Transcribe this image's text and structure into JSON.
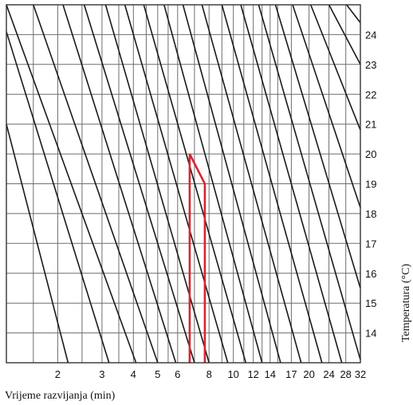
{
  "chart_data": {
    "type": "line",
    "title": "",
    "xlabel": "Vrijeme razvijanja (min)",
    "ylabel": "Temperatura (°C)",
    "x_scale": "log",
    "xlim": [
      1.25,
      32
    ],
    "ylim": [
      13,
      25
    ],
    "grid": true,
    "x_grid": [
      1.25,
      1.6,
      2,
      2.5,
      3,
      3.5,
      4,
      4.5,
      5,
      5.5,
      6,
      7,
      8,
      9,
      10,
      11,
      12,
      13,
      14,
      15,
      17,
      20,
      24,
      28,
      32
    ],
    "x_ticks": [
      {
        "value": 2,
        "label": "2"
      },
      {
        "value": 3,
        "label": "3"
      },
      {
        "value": 4,
        "label": "4"
      },
      {
        "value": 5,
        "label": "5"
      },
      {
        "value": 6,
        "label": "6"
      },
      {
        "value": 8,
        "label": "8"
      },
      {
        "value": 10,
        "label": "10"
      },
      {
        "value": 12,
        "label": "12"
      },
      {
        "value": 14,
        "label": "14"
      },
      {
        "value": 17,
        "label": "17"
      },
      {
        "value": 20,
        "label": "20"
      },
      {
        "value": 24,
        "label": "24"
      },
      {
        "value": 28,
        "label": "28"
      },
      {
        "value": 32,
        "label": "32"
      }
    ],
    "y_ticks": [
      {
        "value": 14,
        "label": "14"
      },
      {
        "value": 15,
        "label": "15"
      },
      {
        "value": 16,
        "label": "16"
      },
      {
        "value": 17,
        "label": "17"
      },
      {
        "value": 18,
        "label": "18"
      },
      {
        "value": 19,
        "label": "19"
      },
      {
        "value": 20,
        "label": "20"
      },
      {
        "value": 21,
        "label": "21"
      },
      {
        "value": 22,
        "label": "22"
      },
      {
        "value": 23,
        "label": "23"
      },
      {
        "value": 24,
        "label": "24"
      }
    ],
    "guide_lines": [
      {
        "points": [
          [
            1.25,
            24.1
          ],
          [
            3.2,
            13
          ]
        ]
      },
      {
        "points": [
          [
            1.25,
            21.0
          ],
          [
            2.2,
            13
          ]
        ]
      },
      {
        "points": [
          [
            1.25,
            25
          ],
          [
            4.1,
            13
          ]
        ]
      },
      {
        "points": [
          [
            1.6,
            25
          ],
          [
            5.0,
            13
          ]
        ]
      },
      {
        "points": [
          [
            2.1,
            25
          ],
          [
            5.9,
            13
          ]
        ]
      },
      {
        "points": [
          [
            2.55,
            25
          ],
          [
            7.0,
            13
          ]
        ]
      },
      {
        "points": [
          [
            3.1,
            25
          ],
          [
            8.0,
            13
          ]
        ]
      },
      {
        "points": [
          [
            3.7,
            25
          ],
          [
            9.5,
            13
          ]
        ]
      },
      {
        "points": [
          [
            4.4,
            25
          ],
          [
            11.2,
            13
          ]
        ]
      },
      {
        "points": [
          [
            5.3,
            25
          ],
          [
            13.0,
            13
          ]
        ]
      },
      {
        "points": [
          [
            6.3,
            25
          ],
          [
            15.4,
            13
          ]
        ]
      },
      {
        "points": [
          [
            7.5,
            25
          ],
          [
            18.6,
            13
          ]
        ]
      },
      {
        "points": [
          [
            9.0,
            25
          ],
          [
            22.5,
            13
          ]
        ]
      },
      {
        "points": [
          [
            10.7,
            25
          ],
          [
            27.0,
            13
          ]
        ]
      },
      {
        "points": [
          [
            12.6,
            25
          ],
          [
            32,
            13.1
          ]
        ]
      },
      {
        "points": [
          [
            14.7,
            25
          ],
          [
            32,
            15.5
          ]
        ]
      },
      {
        "points": [
          [
            17.2,
            25
          ],
          [
            32,
            18.2
          ]
        ]
      },
      {
        "points": [
          [
            20.3,
            25
          ],
          [
            32,
            20.8
          ]
        ]
      },
      {
        "points": [
          [
            24.0,
            25
          ],
          [
            32,
            23.0
          ]
        ]
      },
      {
        "points": [
          [
            28.2,
            25
          ],
          [
            32,
            24.4
          ]
        ]
      }
    ],
    "series": [
      {
        "color": "#d9252e",
        "points": [
          [
            6.7,
            13
          ],
          [
            6.7,
            20
          ],
          [
            7.7,
            19
          ],
          [
            7.7,
            13
          ]
        ]
      }
    ],
    "colors": {
      "grid": "#6e6e6e",
      "frame": "#333333",
      "guide": "#1a1a1a",
      "highlight": "#d9252e"
    }
  }
}
